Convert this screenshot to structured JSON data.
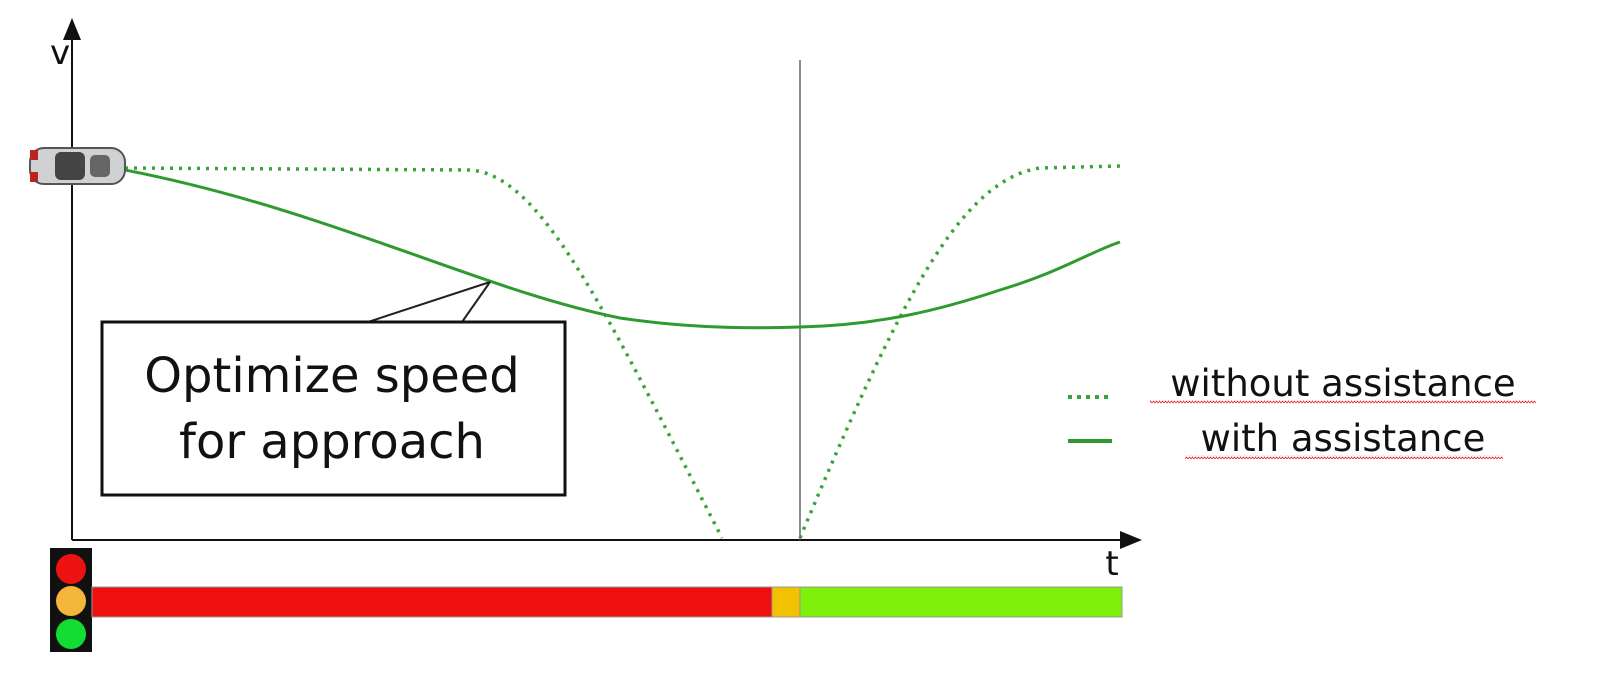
{
  "axes": {
    "y_label": "v",
    "x_label": "t"
  },
  "callout": {
    "lines": [
      "Optimize speed",
      "for approach"
    ]
  },
  "legend": {
    "items": [
      "without assistance",
      "with assistance"
    ]
  }
}
